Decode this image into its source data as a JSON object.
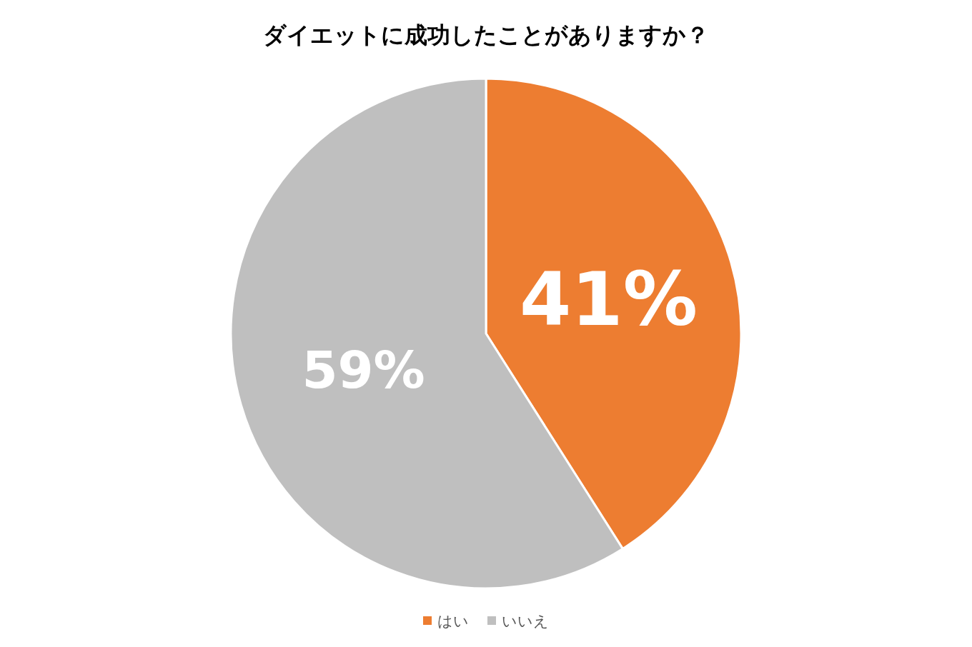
{
  "chart_data": {
    "type": "pie",
    "title": "ダイエットに成功したことがありますか？",
    "categories": [
      "はい",
      "いいえ"
    ],
    "values": [
      41,
      59
    ],
    "value_labels": [
      "41%",
      "59%"
    ],
    "colors": [
      "#ed7d31",
      "#bfbfbf"
    ],
    "legend": "bottom"
  }
}
